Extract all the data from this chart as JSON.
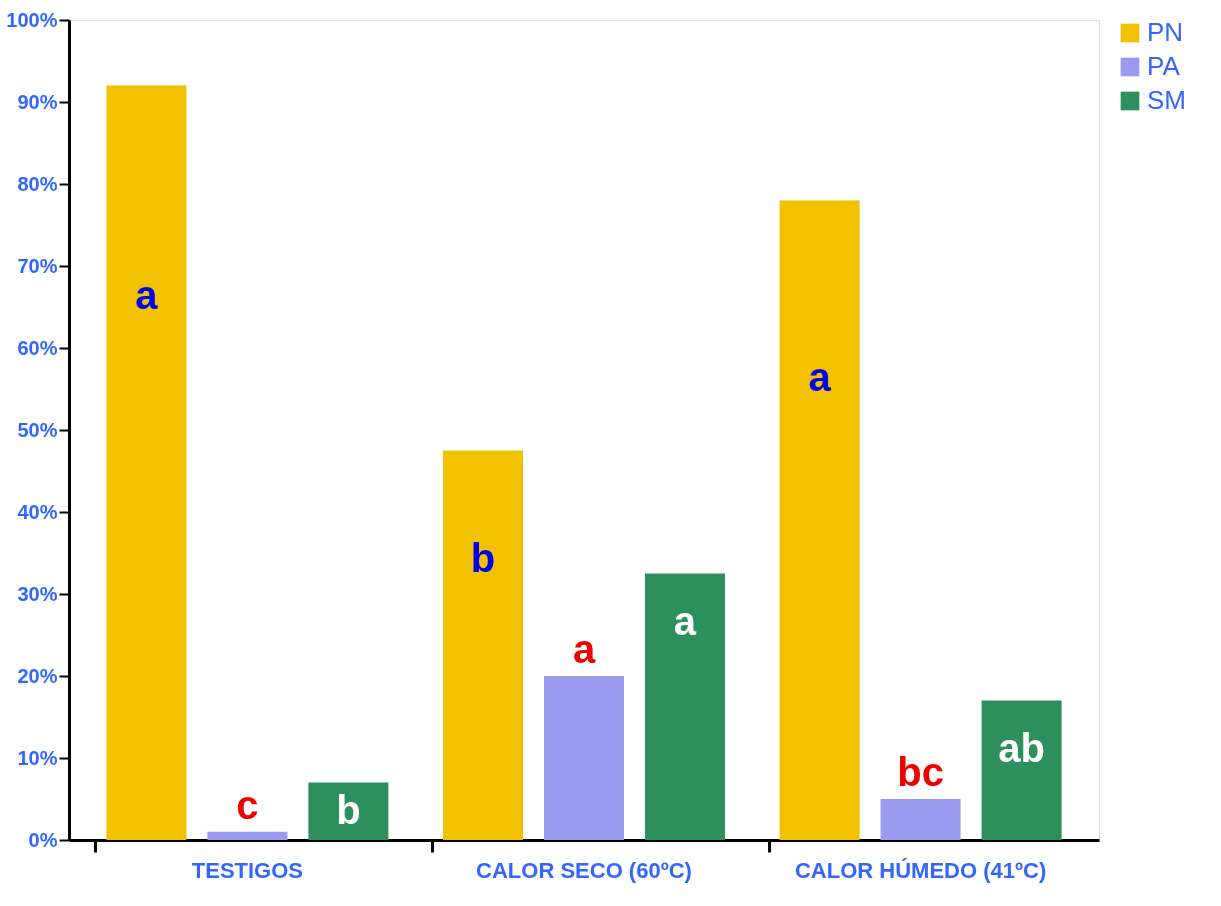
{
  "chart_data": {
    "type": "bar",
    "categories": [
      "TESTIGOS",
      "CALOR SECO (60ºC)",
      "CALOR HÚMEDO (41ºC)"
    ],
    "series": [
      {
        "name": "PN",
        "color": "#f2c200",
        "values": [
          92,
          47.5,
          78
        ],
        "value_labels": [
          "a",
          "b",
          "a"
        ]
      },
      {
        "name": "PA",
        "color": "#9a9af0",
        "values": [
          1,
          20,
          5
        ],
        "value_labels": [
          "c",
          "a",
          "bc"
        ]
      },
      {
        "name": "SM",
        "color": "#2e8f5e",
        "values": [
          7,
          32.5,
          17
        ],
        "value_labels": [
          "b",
          "a",
          "ab"
        ]
      }
    ],
    "ylim": [
      0,
      100
    ],
    "yticks": [
      {
        "value": 0,
        "label": "0%"
      },
      {
        "value": 10,
        "label": "10%"
      },
      {
        "value": 20,
        "label": "20%"
      },
      {
        "value": 30,
        "label": "30%"
      },
      {
        "value": 40,
        "label": "40%"
      },
      {
        "value": 50,
        "label": "50%"
      },
      {
        "value": 60,
        "label": "60%"
      },
      {
        "value": 70,
        "label": "70%"
      },
      {
        "value": 80,
        "label": "80%"
      },
      {
        "value": 90,
        "label": "90%"
      },
      {
        "value": 100,
        "label": "100%"
      }
    ],
    "grid": false,
    "legend": "right"
  }
}
